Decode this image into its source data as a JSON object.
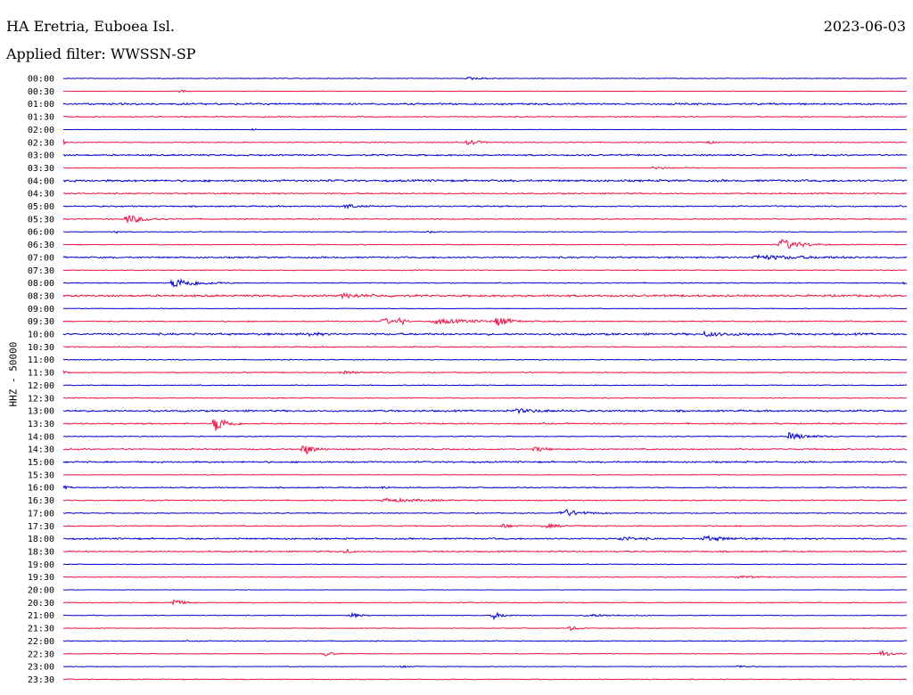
{
  "header": {
    "station": "HA Eretria, Euboea Isl.",
    "date": "2023-06-03",
    "filter": "Applied filter: WWSSN-SP"
  },
  "chart_data": {
    "type": "line",
    "title": "HA Eretria, Euboea Isl.",
    "ylabel": "HHZ - 50000",
    "grid": false,
    "colors": [
      "#0000cc",
      "#ee1144"
    ],
    "rows": [
      {
        "label": "00:00",
        "color": "#0000cc",
        "noise": 0.3,
        "events": [
          [
            0.48,
            1.5,
            0.02
          ]
        ]
      },
      {
        "label": "00:30",
        "color": "#ee1144",
        "noise": 0.2,
        "events": [
          [
            0.14,
            2,
            0.005
          ]
        ]
      },
      {
        "label": "01:00",
        "color": "#0000cc",
        "noise": 0.8,
        "events": []
      },
      {
        "label": "01:30",
        "color": "#ee1144",
        "noise": 0.5,
        "events": []
      },
      {
        "label": "02:00",
        "color": "#0000cc",
        "noise": 0.2,
        "events": [
          [
            0.225,
            2,
            0.003
          ]
        ]
      },
      {
        "label": "02:30",
        "color": "#ee1144",
        "noise": 0.4,
        "events": [
          [
            0.0,
            3,
            0.003
          ],
          [
            0.48,
            4,
            0.01
          ],
          [
            0.765,
            2,
            0.005
          ]
        ]
      },
      {
        "label": "03:00",
        "color": "#0000cc",
        "noise": 0.7,
        "events": []
      },
      {
        "label": "03:30",
        "color": "#ee1144",
        "noise": 0.3,
        "events": [
          [
            0.7,
            1.5,
            0.02
          ]
        ]
      },
      {
        "label": "04:00",
        "color": "#0000cc",
        "noise": 0.9,
        "events": []
      },
      {
        "label": "04:30",
        "color": "#ee1144",
        "noise": 0.6,
        "events": []
      },
      {
        "label": "05:00",
        "color": "#0000cc",
        "noise": 0.6,
        "events": [
          [
            0.335,
            3,
            0.01
          ]
        ]
      },
      {
        "label": "05:30",
        "color": "#ee1144",
        "noise": 0.5,
        "events": [
          [
            0.075,
            5,
            0.02
          ]
        ]
      },
      {
        "label": "06:00",
        "color": "#0000cc",
        "noise": 0.3,
        "events": [
          [
            0.063,
            2,
            0.003
          ],
          [
            0.435,
            1.5,
            0.003
          ]
        ]
      },
      {
        "label": "06:30",
        "color": "#ee1144",
        "noise": 0.4,
        "events": [
          [
            0.85,
            7,
            0.02
          ]
        ]
      },
      {
        "label": "07:00",
        "color": "#0000cc",
        "noise": 0.7,
        "events": [
          [
            0.82,
            2.5,
            0.05
          ]
        ]
      },
      {
        "label": "07:30",
        "color": "#ee1144",
        "noise": 0.4,
        "events": []
      },
      {
        "label": "08:00",
        "color": "#0000cc",
        "noise": 0.4,
        "events": [
          [
            0.13,
            6,
            0.025
          ],
          [
            0.998,
            3,
            0.002
          ]
        ]
      },
      {
        "label": "08:30",
        "color": "#ee1144",
        "noise": 0.9,
        "events": [
          [
            0.33,
            2,
            0.03
          ]
        ]
      },
      {
        "label": "09:00",
        "color": "#0000cc",
        "noise": 0.3,
        "events": []
      },
      {
        "label": "09:30",
        "color": "#ee1144",
        "noise": 0.5,
        "events": [
          [
            0.38,
            4,
            0.01
          ],
          [
            0.4,
            5,
            0.004
          ],
          [
            0.44,
            2.5,
            0.05
          ],
          [
            0.515,
            6,
            0.01
          ]
        ]
      },
      {
        "label": "10:00",
        "color": "#0000cc",
        "noise": 0.9,
        "events": [
          [
            0.29,
            2,
            0.01
          ],
          [
            0.76,
            2,
            0.03
          ]
        ]
      },
      {
        "label": "10:30",
        "color": "#ee1144",
        "noise": 0.5,
        "events": []
      },
      {
        "label": "11:00",
        "color": "#0000cc",
        "noise": 0.4,
        "events": []
      },
      {
        "label": "11:30",
        "color": "#ee1144",
        "noise": 0.4,
        "events": [
          [
            0.0,
            2,
            0.003
          ],
          [
            0.33,
            1.5,
            0.02
          ]
        ]
      },
      {
        "label": "12:00",
        "color": "#0000cc",
        "noise": 0.4,
        "events": []
      },
      {
        "label": "12:30",
        "color": "#ee1144",
        "noise": 0.4,
        "events": []
      },
      {
        "label": "13:00",
        "color": "#0000cc",
        "noise": 0.8,
        "events": [
          [
            0.535,
            2,
            0.03
          ]
        ]
      },
      {
        "label": "13:30",
        "color": "#ee1144",
        "noise": 0.6,
        "events": [
          [
            0.18,
            10,
            0.012
          ]
        ]
      },
      {
        "label": "14:00",
        "color": "#0000cc",
        "noise": 0.4,
        "events": [
          [
            0.86,
            4,
            0.02
          ]
        ]
      },
      {
        "label": "14:30",
        "color": "#ee1144",
        "noise": 0.6,
        "events": [
          [
            0.285,
            7,
            0.01
          ],
          [
            0.56,
            3,
            0.01
          ]
        ]
      },
      {
        "label": "15:00",
        "color": "#0000cc",
        "noise": 0.7,
        "events": []
      },
      {
        "label": "15:30",
        "color": "#ee1144",
        "noise": 0.3,
        "events": []
      },
      {
        "label": "16:00",
        "color": "#0000cc",
        "noise": 0.5,
        "events": [
          [
            0.0,
            2,
            0.005
          ],
          [
            0.38,
            2,
            0.005
          ]
        ]
      },
      {
        "label": "16:30",
        "color": "#ee1144",
        "noise": 0.5,
        "events": [
          [
            0.38,
            2,
            0.04
          ]
        ]
      },
      {
        "label": "17:00",
        "color": "#0000cc",
        "noise": 0.4,
        "events": [
          [
            0.59,
            5,
            0.02
          ]
        ]
      },
      {
        "label": "17:30",
        "color": "#ee1144",
        "noise": 0.5,
        "events": [
          [
            0.52,
            2.5,
            0.01
          ],
          [
            0.57,
            2,
            0.02
          ]
        ]
      },
      {
        "label": "18:00",
        "color": "#0000cc",
        "noise": 0.7,
        "events": [
          [
            0.66,
            2.5,
            0.015
          ],
          [
            0.76,
            2.5,
            0.025
          ]
        ]
      },
      {
        "label": "18:30",
        "color": "#ee1144",
        "noise": 0.6,
        "events": [
          [
            0.335,
            3,
            0.005
          ]
        ]
      },
      {
        "label": "19:00",
        "color": "#0000cc",
        "noise": 0.3,
        "events": []
      },
      {
        "label": "19:30",
        "color": "#ee1144",
        "noise": 0.3,
        "events": [
          [
            0.8,
            1.5,
            0.02
          ]
        ]
      },
      {
        "label": "20:00",
        "color": "#0000cc",
        "noise": 0.2,
        "events": []
      },
      {
        "label": "20:30",
        "color": "#ee1144",
        "noise": 0.4,
        "events": [
          [
            0.13,
            4,
            0.01
          ]
        ]
      },
      {
        "label": "21:00",
        "color": "#0000cc",
        "noise": 0.3,
        "events": [
          [
            0.34,
            3,
            0.01
          ],
          [
            0.51,
            4,
            0.01
          ],
          [
            0.62,
            1.5,
            0.03
          ]
        ]
      },
      {
        "label": "21:30",
        "color": "#ee1144",
        "noise": 0.3,
        "events": [
          [
            0.6,
            2.5,
            0.01
          ]
        ]
      },
      {
        "label": "22:00",
        "color": "#0000cc",
        "noise": 0.4,
        "events": []
      },
      {
        "label": "22:30",
        "color": "#ee1144",
        "noise": 0.3,
        "events": [
          [
            0.31,
            2.5,
            0.01
          ],
          [
            0.97,
            4,
            0.01
          ]
        ]
      },
      {
        "label": "23:00",
        "color": "#0000cc",
        "noise": 0.3,
        "events": [
          [
            0.4,
            1.5,
            0.01
          ],
          [
            0.8,
            1.5,
            0.01
          ]
        ]
      },
      {
        "label": "23:30",
        "color": "#ee1144",
        "noise": 0.4,
        "events": []
      }
    ]
  }
}
